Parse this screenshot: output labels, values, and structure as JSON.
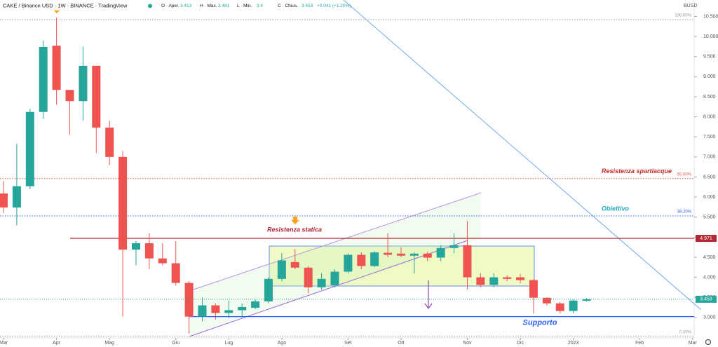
{
  "chart_data": {
    "type": "candlestick",
    "title": "CAKE / Binance USD · 1W · BINANCE · TradingView",
    "ohlc_labels": [
      "O · Aper.",
      "H · Max.",
      "L · Min.",
      "C · Chius."
    ],
    "change": "+0.041 (+1.20%)",
    "y_axis_label": "BUSD",
    "up_color": "#26a69a",
    "down_color": "#ef5350",
    "x": [
      0,
      1,
      2,
      3,
      4,
      5,
      6,
      7,
      8,
      9,
      10,
      11,
      12,
      13,
      14,
      15,
      16,
      17,
      18,
      19,
      20,
      21,
      22,
      23,
      24,
      25,
      26,
      27,
      28,
      29,
      30,
      31,
      32,
      33,
      34,
      35,
      36,
      37,
      38,
      39,
      40,
      41,
      42,
      43,
      44
    ],
    "open": [
      6.09,
      5.74,
      6.27,
      8.12,
      9.77,
      8.67,
      8.39,
      9.27,
      7.73,
      7.0,
      4.69,
      4.85,
      4.47,
      4.35,
      3.86,
      3.02,
      3.3,
      3.11,
      3.18,
      3.24,
      3.4,
      3.96,
      4.38,
      4.24,
      3.75,
      3.8,
      4.14,
      4.56,
      4.28,
      4.61,
      4.59,
      4.54,
      4.59,
      4.49,
      4.73,
      4.8,
      4.0,
      3.81,
      4.0,
      4.0,
      3.93,
      3.49,
      3.35,
      3.16,
      3.413
    ],
    "high": [
      6.4,
      7.33,
      8.2,
      9.9,
      10.47,
      8.6,
      9.75,
      9.27,
      7.9,
      7.15,
      4.9,
      5.1,
      4.85,
      4.9,
      3.9,
      3.5,
      3.35,
      3.42,
      3.35,
      3.45,
      4.0,
      4.6,
      4.7,
      4.28,
      4.1,
      4.2,
      4.6,
      4.62,
      4.65,
      5.1,
      4.75,
      4.62,
      4.64,
      4.8,
      5.1,
      5.4,
      4.1,
      4.1,
      4.05,
      4.08,
      3.95,
      3.5,
      3.38,
      3.45,
      3.481
    ],
    "low": [
      5.6,
      5.29,
      6.2,
      7.95,
      8.3,
      7.55,
      7.9,
      7.1,
      6.8,
      3.02,
      4.3,
      4.2,
      4.3,
      3.8,
      2.6,
      2.9,
      2.95,
      2.98,
      3.0,
      3.2,
      3.35,
      3.9,
      4.2,
      3.6,
      3.7,
      3.75,
      4.1,
      4.2,
      4.25,
      4.5,
      4.5,
      4.1,
      4.4,
      4.4,
      4.6,
      3.7,
      3.75,
      3.75,
      3.9,
      3.85,
      3.1,
      3.3,
      3.1,
      3.1,
      3.4
    ],
    "close": [
      5.74,
      6.27,
      8.12,
      9.74,
      8.67,
      8.39,
      9.27,
      7.73,
      7.0,
      4.69,
      4.85,
      4.47,
      4.35,
      3.86,
      3.02,
      3.3,
      3.11,
      3.18,
      3.26,
      3.4,
      3.96,
      4.42,
      4.24,
      3.75,
      3.96,
      4.14,
      4.56,
      4.28,
      4.62,
      4.56,
      4.54,
      4.59,
      4.49,
      4.73,
      4.8,
      4.0,
      3.81,
      4.0,
      3.96,
      3.93,
      3.49,
      3.35,
      3.16,
      3.42,
      3.453
    ],
    "xlim": [
      -0.265,
      52.12
    ],
    "xticks": [
      {
        "value": 0,
        "label": "Mar"
      },
      {
        "value": 4,
        "label": "Apr"
      },
      {
        "value": 8,
        "label": "Mag"
      },
      {
        "value": 13,
        "label": "Giu"
      },
      {
        "value": 17,
        "label": "Lug"
      },
      {
        "value": 21,
        "label": "Ago"
      },
      {
        "value": 26,
        "label": "Set"
      },
      {
        "value": 30,
        "label": "Ott"
      },
      {
        "value": 35,
        "label": "Nov"
      },
      {
        "value": 39,
        "label": "Dic"
      },
      {
        "value": 43,
        "label": "2023"
      },
      {
        "value": 48,
        "label": "Feb"
      },
      {
        "value": 52,
        "label": "Mar"
      }
    ],
    "ylim": [
      2.49,
      10.91
    ],
    "yticks": [
      {
        "value": 3,
        "label": "3.000"
      },
      {
        "value": 3.5,
        "label": "3.500"
      },
      {
        "value": 4,
        "label": "4.000"
      },
      {
        "value": 4.5,
        "label": "4.500"
      },
      {
        "value": 5,
        "label": "5.000"
      },
      {
        "value": 5.5,
        "label": "5.500"
      },
      {
        "value": 6,
        "label": "6.000"
      },
      {
        "value": 6.5,
        "label": "6.500"
      },
      {
        "value": 7,
        "label": "7.000"
      },
      {
        "value": 7.5,
        "label": "7.500"
      },
      {
        "value": 8,
        "label": "8.000"
      },
      {
        "value": 8.5,
        "label": "8.500"
      },
      {
        "value": 9,
        "label": "9.000"
      },
      {
        "value": 9.5,
        "label": "9.500"
      },
      {
        "value": 10,
        "label": "10.000"
      },
      {
        "value": 10.5,
        "label": "10.500"
      }
    ],
    "fib_levels": [
      {
        "label": "100.00%",
        "value": 10.42,
        "color": "#9598a1"
      },
      {
        "label": "50.00%",
        "value": 6.46,
        "color": "#e05050",
        "note": "Resistenza spartiacque",
        "note_color": "#c62828"
      },
      {
        "label": "38.20%",
        "value": 5.53,
        "color": "#2962ff",
        "note": "Obiettivo",
        "note_color": "#1ea7c4"
      },
      {
        "label": "0.00%",
        "value": 2.53,
        "color": "#9598a1"
      }
    ],
    "levels": [
      {
        "label": "Resistenza statica",
        "value": 4.971,
        "color": "#b22833"
      },
      {
        "label": "Supporto",
        "value": 3.02,
        "color": "#2962ff"
      }
    ]
  }
}
